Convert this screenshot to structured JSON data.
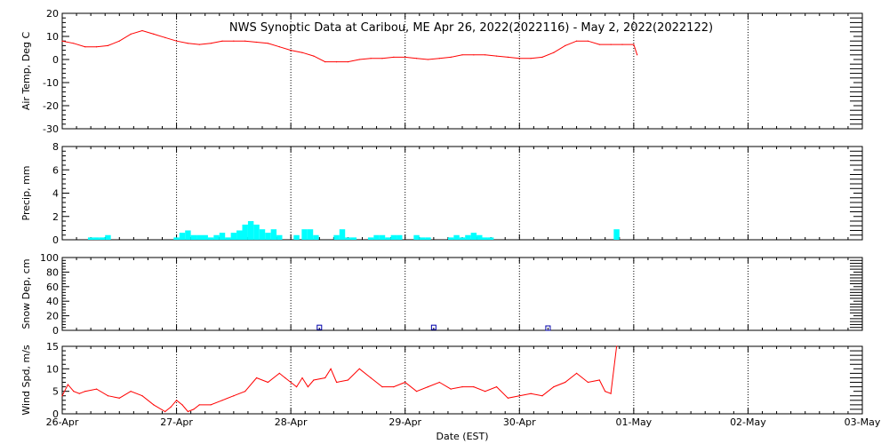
{
  "title": "NWS Synoptic Data at Caribou, ME   Apr 26, 2022(2022116) - May  2, 2022(2022122)",
  "xlabel": "Date (EST)",
  "chart_data": [
    {
      "type": "line",
      "ylabel": "Air Temp, Deg C",
      "ylim": [
        -30,
        20
      ],
      "yticks": [
        20,
        10,
        0,
        -10,
        -20,
        -30
      ],
      "xlim": [
        0,
        7
      ],
      "xticks": [
        "26-Apr",
        "27-Apr",
        "28-Apr",
        "29-Apr",
        "30-Apr",
        "01-May",
        "02-May",
        "03-May"
      ],
      "color": "#ff0000",
      "series": [
        {
          "x": [
            0,
            0.1,
            0.2,
            0.3,
            0.4,
            0.5,
            0.6,
            0.7,
            0.8,
            0.9,
            1.0,
            1.1,
            1.2,
            1.3,
            1.4,
            1.5,
            1.6,
            1.7,
            1.8,
            1.9,
            2.0,
            2.1,
            2.2,
            2.3,
            2.4,
            2.5,
            2.6,
            2.7,
            2.8,
            2.9,
            3.0,
            3.1,
            3.2,
            3.3,
            3.4,
            3.5,
            3.6,
            3.7,
            3.8,
            3.9,
            4.0,
            4.1,
            4.2,
            4.3,
            4.4,
            4.5,
            4.6,
            4.7,
            4.8,
            4.9,
            5.0,
            5.03
          ],
          "y": [
            8,
            7,
            5.5,
            5.5,
            6,
            8,
            11,
            12.5,
            11,
            9.5,
            8,
            7,
            6.5,
            7,
            8,
            8,
            8,
            7.5,
            7,
            5.5,
            4,
            3,
            1.5,
            -1,
            -1,
            -1,
            0,
            0.5,
            0.5,
            1,
            1,
            0.5,
            0,
            0.5,
            1,
            2,
            2,
            2,
            1.5,
            1,
            0.5,
            0.5,
            1,
            3,
            6,
            8,
            8,
            6.5,
            6.5,
            6.5,
            6.5,
            2
          ]
        }
      ]
    },
    {
      "type": "bar",
      "ylabel": "Precip, mm",
      "ylim": [
        0,
        8
      ],
      "yticks": [
        8,
        6,
        4,
        2,
        0
      ],
      "color": "#00ffff",
      "x": [
        0.25,
        0.3,
        0.35,
        0.4,
        1.0,
        1.05,
        1.1,
        1.15,
        1.2,
        1.25,
        1.3,
        1.35,
        1.4,
        1.45,
        1.5,
        1.55,
        1.6,
        1.65,
        1.7,
        1.75,
        1.8,
        1.85,
        1.9,
        2.05,
        2.12,
        2.17,
        2.22,
        2.4,
        2.45,
        2.5,
        2.55,
        2.7,
        2.75,
        2.8,
        2.85,
        2.9,
        2.95,
        3.1,
        3.15,
        3.2,
        3.4,
        3.45,
        3.5,
        3.55,
        3.6,
        3.65,
        3.7,
        3.75,
        4.85
      ],
      "values": [
        0.2,
        0.2,
        0.2,
        0.4,
        0.2,
        0.6,
        0.8,
        0.4,
        0.4,
        0.4,
        0.2,
        0.4,
        0.6,
        0.2,
        0.6,
        0.8,
        1.3,
        1.6,
        1.3,
        0.9,
        0.6,
        0.9,
        0.4,
        0.4,
        0.9,
        0.9,
        0.4,
        0.4,
        0.9,
        0.2,
        0.2,
        0.2,
        0.4,
        0.4,
        0.2,
        0.4,
        0.4,
        0.4,
        0.2,
        0.2,
        0.2,
        0.4,
        0.2,
        0.4,
        0.6,
        0.4,
        0.2,
        0.2,
        0.9
      ]
    },
    {
      "type": "scatter",
      "ylabel": "Snow Dep, cm",
      "ylim": [
        0,
        100
      ],
      "yticks": [
        100,
        80,
        60,
        40,
        20,
        0
      ],
      "color": "#0000aa",
      "x": [
        2.25,
        3.25,
        4.25
      ],
      "y": [
        1,
        1,
        0
      ]
    },
    {
      "type": "line",
      "ylabel": "Wind Spd, m/s",
      "ylim": [
        0,
        15
      ],
      "yticks": [
        15,
        10,
        5,
        0
      ],
      "color": "#ff0000",
      "series": [
        {
          "x": [
            0,
            0.05,
            0.1,
            0.15,
            0.2,
            0.3,
            0.4,
            0.5,
            0.6,
            0.7,
            0.8,
            0.9,
            0.95,
            1.0,
            1.05,
            1.1,
            1.15,
            1.2,
            1.3,
            1.4,
            1.5,
            1.6,
            1.7,
            1.8,
            1.9,
            1.95,
            2.0,
            2.05,
            2.1,
            2.15,
            2.2,
            2.3,
            2.35,
            2.4,
            2.5,
            2.6,
            2.7,
            2.8,
            2.9,
            3.0,
            3.1,
            3.2,
            3.3,
            3.4,
            3.5,
            3.6,
            3.7,
            3.8,
            3.9,
            4.0,
            4.1,
            4.2,
            4.3,
            4.4,
            4.5,
            4.6,
            4.7,
            4.75,
            4.8,
            4.85
          ],
          "y": [
            4,
            6.5,
            5,
            4.5,
            5,
            5.5,
            4,
            3.5,
            5,
            4,
            2,
            0.5,
            1.5,
            3,
            2,
            0.5,
            1,
            2,
            2,
            3,
            4,
            5,
            8,
            7,
            9,
            8,
            7,
            6,
            8,
            6,
            7.5,
            8,
            10,
            7,
            7.5,
            10,
            8,
            6,
            6,
            7,
            5,
            6,
            7,
            5.5,
            6,
            6,
            5,
            6,
            3.5,
            4,
            4.5,
            4,
            6,
            7,
            9,
            7,
            7.5,
            5,
            4.5,
            15
          ]
        }
      ]
    }
  ]
}
